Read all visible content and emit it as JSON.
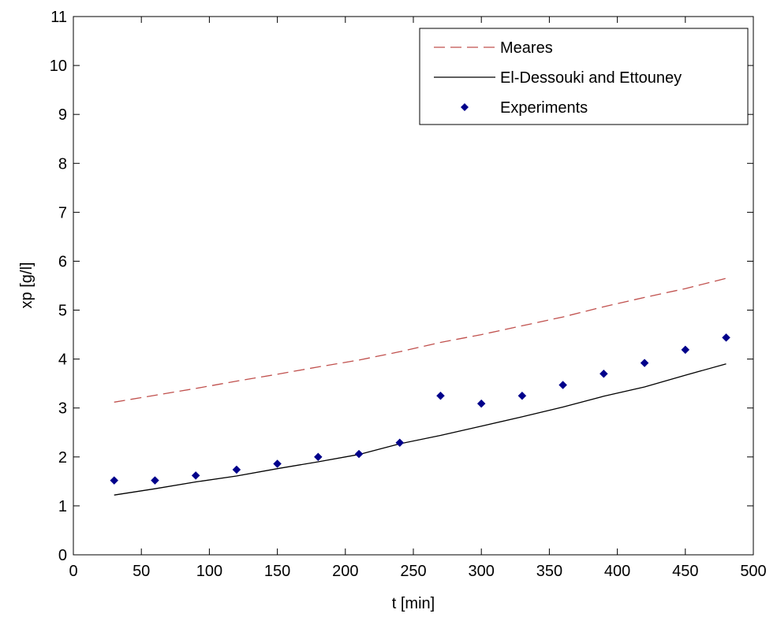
{
  "chart_data": {
    "type": "line",
    "xlabel": "t [min]",
    "ylabel": "xp [g/l]",
    "xlim": [
      0,
      500
    ],
    "ylim": [
      0,
      11
    ],
    "xticks": [
      0,
      50,
      100,
      150,
      200,
      250,
      300,
      350,
      400,
      450,
      500
    ],
    "yticks": [
      0,
      1,
      2,
      3,
      4,
      5,
      6,
      7,
      8,
      9,
      10,
      11
    ],
    "grid": false,
    "legend_position": "top-right",
    "series": [
      {
        "name": "Meares",
        "style": "dashed",
        "color": "#c0504d",
        "x": [
          30,
          60,
          90,
          120,
          150,
          180,
          210,
          240,
          270,
          300,
          330,
          360,
          390,
          420,
          450,
          480
        ],
        "y": [
          3.12,
          3.26,
          3.4,
          3.55,
          3.69,
          3.84,
          3.98,
          4.15,
          4.34,
          4.5,
          4.68,
          4.86,
          5.07,
          5.26,
          5.44,
          5.65
        ]
      },
      {
        "name": "El-Dessouki and Ettouney",
        "style": "solid",
        "color": "#000000",
        "x": [
          30,
          60,
          90,
          120,
          150,
          180,
          210,
          240,
          270,
          300,
          330,
          360,
          390,
          420,
          450,
          480
        ],
        "y": [
          1.22,
          1.35,
          1.49,
          1.61,
          1.76,
          1.9,
          2.05,
          2.27,
          2.44,
          2.63,
          2.82,
          3.02,
          3.24,
          3.43,
          3.67,
          3.9
        ]
      },
      {
        "name": "Experiments",
        "style": "markers",
        "color": "#00008b",
        "x": [
          30,
          60,
          90,
          120,
          150,
          180,
          210,
          240,
          270,
          300,
          330,
          360,
          390,
          420,
          450,
          480
        ],
        "y": [
          1.52,
          1.52,
          1.62,
          1.74,
          1.86,
          2.0,
          2.06,
          2.29,
          3.25,
          3.09,
          3.25,
          3.47,
          3.7,
          3.92,
          4.19,
          4.44
        ]
      }
    ]
  }
}
